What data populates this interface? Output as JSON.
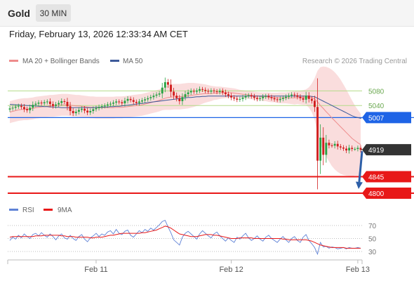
{
  "header": {
    "title": "Gold",
    "interval_label": "30 MIN",
    "timestamp": "Friday, February 13, 2026 12:33:34 AM CET"
  },
  "legend": {
    "ma20": "MA 20 + Bollinger Bands",
    "ma50": "MA 50",
    "rsi": "RSI",
    "nine_ma": "9MA"
  },
  "watermark": "Research © 2026 Trading Central",
  "colors": {
    "resistance": "#b5dc8a",
    "pivot": "#1e64e6",
    "support": "#e81818",
    "current": "#333333",
    "bollinger": "#f8d2d2",
    "ma20": "#ee8c8c",
    "ma50": "#3d5a9a",
    "rsi": "#5f82d6",
    "nine_ma": "#e81818",
    "candle_up": "#27a243",
    "candle_down": "#d11e1e",
    "arrow": "#2d5fa8"
  },
  "chart_data": [
    {
      "type": "candlestick",
      "x_tick_labels": [
        "Feb 11",
        "Feb 12",
        "Feb 13"
      ],
      "ylim": [
        4775,
        5150
      ],
      "levels": [
        {
          "label": "5080",
          "value": 5080,
          "kind": "resistance"
        },
        {
          "label": "5040",
          "value": 5040,
          "kind": "resistance"
        },
        {
          "label": "5007",
          "value": 5007,
          "kind": "pivot"
        },
        {
          "label": "4919",
          "value": 4919,
          "kind": "current"
        },
        {
          "label": "4845",
          "value": 4845,
          "kind": "support"
        },
        {
          "label": "4800",
          "value": 4800,
          "kind": "support"
        }
      ],
      "arrow": {
        "from": 4919,
        "to": 4800
      },
      "close": [
        5032,
        5034,
        5037,
        5039,
        5036,
        5030,
        5027,
        5034,
        5042,
        5045,
        5048,
        5046,
        5049,
        5051,
        5044,
        5039,
        5043,
        5047,
        5052,
        5050,
        5038,
        5025,
        5019,
        5023,
        5028,
        5031,
        5026,
        5021,
        5025,
        5030,
        5033,
        5036,
        5038,
        5040,
        5043,
        5045,
        5048,
        5051,
        5049,
        5046,
        5053,
        5058,
        5055,
        5050,
        5047,
        5051,
        5054,
        5057,
        5060,
        5063,
        5067,
        5070,
        5073,
        5089,
        5104,
        5097,
        5078,
        5067,
        5060,
        5052,
        5063,
        5071,
        5076,
        5080,
        5078,
        5081,
        5085,
        5083,
        5080,
        5078,
        5081,
        5079,
        5077,
        5080,
        5076,
        5071,
        5067,
        5062,
        5059,
        5056,
        5058,
        5062,
        5066,
        5068,
        5065,
        5061,
        5058,
        5060,
        5064,
        5066,
        5063,
        5060,
        5057,
        5055,
        5058,
        5061,
        5064,
        5067,
        5070,
        5068,
        5064,
        5060,
        5056,
        5067,
        5058,
        5053,
        5036,
        4889,
        4952,
        4905,
        4938,
        4931,
        4930,
        4935,
        4928,
        4925,
        4922,
        4917,
        4924,
        4921,
        4921,
        4924,
        4919
      ],
      "ma20": [
        5022,
        5024,
        5026,
        5028,
        5029,
        5030,
        5030,
        5031,
        5032,
        5034,
        5035,
        5036,
        5037,
        5038,
        5039,
        5039,
        5040,
        5041,
        5042,
        5042,
        5042,
        5041,
        5040,
        5039,
        5039,
        5038,
        5037,
        5036,
        5035,
        5035,
        5034,
        5034,
        5034,
        5034,
        5034,
        5034,
        5034,
        5035,
        5035,
        5035,
        5036,
        5037,
        5038,
        5039,
        5040,
        5041,
        5042,
        5044,
        5046,
        5048,
        5050,
        5052,
        5054,
        5057,
        5060,
        5062,
        5063,
        5064,
        5064,
        5064,
        5065,
        5066,
        5067,
        5068,
        5069,
        5070,
        5071,
        5072,
        5073,
        5073,
        5073,
        5074,
        5074,
        5075,
        5075,
        5075,
        5075,
        5075,
        5074,
        5073,
        5072,
        5071,
        5070,
        5069,
        5068,
        5067,
        5066,
        5065,
        5064,
        5064,
        5063,
        5062,
        5062,
        5061,
        5061,
        5061,
        5061,
        5061,
        5061,
        5061,
        5062,
        5062,
        5062,
        5063,
        5062,
        5061,
        5058,
        5050,
        5040,
        5032,
        5023,
        5015,
        5006,
        4998,
        4990,
        4982,
        4974,
        4966,
        4958,
        4950,
        4944,
        4938,
        4933
      ],
      "bb_upper": [
        5052,
        5054,
        5056,
        5058,
        5059,
        5060,
        5060,
        5061,
        5062,
        5064,
        5065,
        5066,
        5067,
        5068,
        5069,
        5069,
        5070,
        5071,
        5072,
        5072,
        5072,
        5071,
        5070,
        5069,
        5069,
        5068,
        5067,
        5066,
        5065,
        5065,
        5064,
        5064,
        5064,
        5064,
        5064,
        5064,
        5064,
        5065,
        5065,
        5065,
        5066,
        5067,
        5068,
        5069,
        5070,
        5071,
        5072,
        5074,
        5076,
        5078,
        5080,
        5082,
        5084,
        5087,
        5092,
        5096,
        5098,
        5099,
        5099,
        5099,
        5100,
        5101,
        5102,
        5102,
        5102,
        5101,
        5100,
        5099,
        5098,
        5096,
        5094,
        5093,
        5092,
        5092,
        5091,
        5090,
        5089,
        5088,
        5087,
        5085,
        5083,
        5082,
        5081,
        5080,
        5079,
        5078,
        5077,
        5076,
        5076,
        5076,
        5076,
        5075,
        5075,
        5075,
        5076,
        5076,
        5076,
        5077,
        5078,
        5079,
        5080,
        5081,
        5082,
        5084,
        5090,
        5100,
        5115,
        5135,
        5145,
        5147,
        5146,
        5143,
        5138,
        5131,
        5122,
        5111,
        5098,
        5084,
        5069,
        5054,
        5040,
        5028,
        5018
      ],
      "bb_lower": [
        4992,
        4994,
        4996,
        4998,
        4999,
        5000,
        5000,
        5001,
        5002,
        5004,
        5005,
        5006,
        5007,
        5008,
        5009,
        5009,
        5010,
        5011,
        5012,
        5012,
        5012,
        5011,
        5010,
        5009,
        5009,
        5008,
        5007,
        5006,
        5005,
        5005,
        5004,
        5004,
        5004,
        5004,
        5004,
        5004,
        5004,
        5005,
        5005,
        5005,
        5006,
        5007,
        5008,
        5009,
        5010,
        5011,
        5012,
        5014,
        5016,
        5018,
        5020,
        5022,
        5024,
        5027,
        5028,
        5028,
        5028,
        5029,
        5029,
        5029,
        5030,
        5031,
        5032,
        5034,
        5036,
        5039,
        5042,
        5045,
        5048,
        5050,
        5052,
        5055,
        5056,
        5058,
        5059,
        5060,
        5061,
        5062,
        5061,
        5061,
        5061,
        5060,
        5059,
        5058,
        5057,
        5056,
        5055,
        5054,
        5052,
        5052,
        5050,
        5049,
        5049,
        5047,
        5046,
        5046,
        5046,
        5045,
        5044,
        5043,
        5044,
        5043,
        5042,
        5042,
        5034,
        5022,
        5001,
        4965,
        4935,
        4917,
        4900,
        4887,
        4874,
        4865,
        4858,
        4853,
        4850,
        4848,
        4847,
        4846,
        4848,
        4848,
        4848
      ],
      "ma50": [
        5043,
        5043,
        5042,
        5042,
        5041,
        5041,
        5040,
        5040,
        5039,
        5039,
        5038,
        5038,
        5037,
        5037,
        5036,
        5036,
        5035,
        5035,
        5034,
        5034,
        5034,
        5034,
        5034,
        5034,
        5034,
        5034,
        5034,
        5034,
        5034,
        5034,
        5035,
        5035,
        5035,
        5036,
        5036,
        5037,
        5037,
        5038,
        5038,
        5039,
        5040,
        5041,
        5042,
        5043,
        5044,
        5045,
        5046,
        5047,
        5048,
        5049,
        5050,
        5051,
        5052,
        5053,
        5054,
        5055,
        5056,
        5057,
        5058,
        5059,
        5060,
        5061,
        5062,
        5062,
        5063,
        5064,
        5064,
        5065,
        5065,
        5066,
        5066,
        5066,
        5066,
        5066,
        5066,
        5066,
        5066,
        5066,
        5066,
        5066,
        5066,
        5066,
        5066,
        5066,
        5066,
        5066,
        5066,
        5066,
        5066,
        5066,
        5066,
        5066,
        5066,
        5066,
        5066,
        5066,
        5066,
        5066,
        5066,
        5066,
        5066,
        5066,
        5066,
        5066,
        5066,
        5065,
        5064,
        5060,
        5056,
        5052,
        5048,
        5044,
        5040,
        5036,
        5032,
        5028,
        5024,
        5020,
        5016,
        5012,
        5009,
        5007,
        5005
      ]
    },
    {
      "type": "line",
      "series": [
        {
          "name": "RSI"
        },
        {
          "name": "9MA"
        }
      ],
      "ylim": [
        20,
        80
      ],
      "y_tick_labels": [
        "70",
        "50",
        "30"
      ],
      "y_ticks": [
        70,
        50,
        30
      ],
      "rsi": [
        47,
        52,
        49,
        55,
        51,
        57,
        53,
        50,
        56,
        58,
        54,
        59,
        55,
        52,
        57,
        53,
        48,
        54,
        57,
        51,
        49,
        55,
        50,
        47,
        53,
        56,
        49,
        45,
        51,
        54,
        58,
        53,
        57,
        55,
        60,
        62,
        57,
        64,
        58,
        56,
        61,
        63,
        55,
        52,
        57,
        62,
        59,
        64,
        61,
        66,
        63,
        67,
        71,
        76,
        78,
        68,
        59,
        48,
        44,
        40,
        52,
        58,
        61,
        57,
        53,
        49,
        57,
        62,
        58,
        54,
        51,
        57,
        60,
        54,
        50,
        46,
        51,
        47,
        44,
        52,
        49,
        54,
        58,
        51,
        47,
        50,
        54,
        49,
        46,
        52,
        55,
        50,
        47,
        44,
        49,
        53,
        48,
        44,
        50,
        53,
        47,
        44,
        52,
        56,
        47,
        42,
        36,
        26,
        44,
        37,
        38,
        35,
        37,
        36,
        34,
        35,
        36,
        34,
        36,
        35,
        35,
        36,
        35
      ],
      "ma9": [
        52,
        53,
        53,
        53,
        53,
        53,
        53,
        53,
        53,
        54,
        54,
        54,
        55,
        55,
        55,
        55,
        55,
        55,
        54,
        54,
        53,
        53,
        53,
        52,
        52,
        52,
        52,
        52,
        51,
        51,
        52,
        52,
        52,
        53,
        54,
        55,
        55,
        56,
        57,
        58,
        58,
        58,
        58,
        58,
        58,
        58,
        59,
        59,
        60,
        61,
        62,
        63,
        65,
        67,
        69,
        68,
        66,
        63,
        60,
        57,
        56,
        55,
        54,
        53,
        53,
        53,
        54,
        55,
        56,
        56,
        56,
        55,
        55,
        54,
        53,
        52,
        51,
        50,
        50,
        50,
        51,
        51,
        51,
        51,
        51,
        50,
        50,
        50,
        50,
        50,
        50,
        50,
        50,
        50,
        50,
        49,
        49,
        48,
        48,
        48,
        48,
        48,
        48,
        48,
        47,
        46,
        44,
        42,
        40,
        39,
        38,
        37,
        36,
        36,
        36,
        36,
        36,
        35,
        35,
        35,
        35,
        35,
        35
      ]
    }
  ]
}
